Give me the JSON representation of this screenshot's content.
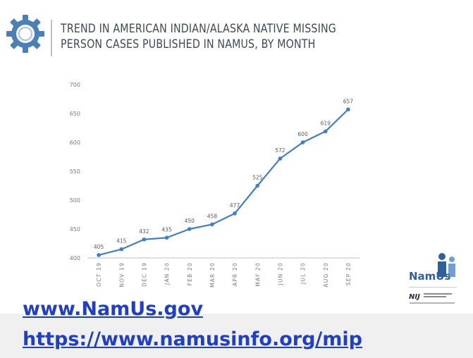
{
  "header": {
    "title": "TREND IN AMERICAN INDIAN/ALASKA NATIVE MISSING\nPERSON CASES PUBLISHED IN NAMUS, BY MONTH",
    "icon": "gear-icon"
  },
  "logo": {
    "name": "NamUs",
    "sub": "National Institute of Justice"
  },
  "links": {
    "primary": "www.NamUs.gov",
    "secondary": "https://www.namusinfo.org/mip"
  },
  "colors": {
    "series": "#3f7ec9",
    "title": "#3f4a57",
    "link": "#1f3fc8"
  },
  "chart_data": {
    "type": "line",
    "title": "TREND IN AMERICAN INDIAN/ALASKA NATIVE MISSING PERSON CASES PUBLISHED IN NAMUS, BY MONTH",
    "categories": [
      "OCT 19",
      "NOV 19",
      "DEC 19",
      "JAN 20",
      "FEB 20",
      "MAR 20",
      "APR 20",
      "MAY 20",
      "JUN 20",
      "JUL 20",
      "AUG 20",
      "SEP 20"
    ],
    "values": [
      405,
      415,
      432,
      435,
      450,
      458,
      477,
      525,
      572,
      600,
      619,
      657
    ],
    "yticks": [
      400,
      450,
      500,
      550,
      600,
      650,
      700
    ],
    "ylim": [
      400,
      700
    ],
    "xlabel": "",
    "ylabel": "",
    "grid": false,
    "data_labels": true,
    "markers": true
  }
}
